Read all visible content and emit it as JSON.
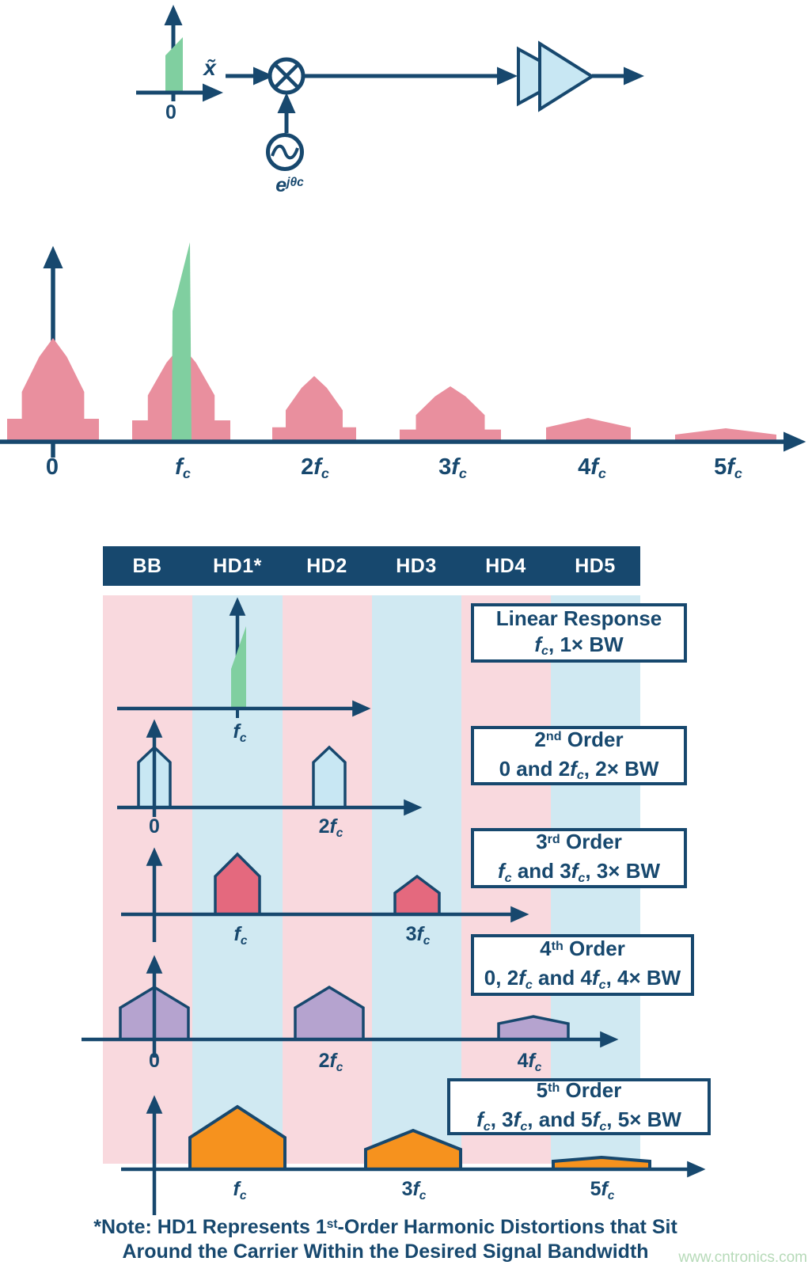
{
  "colors": {
    "navy": "#17486E",
    "pink_band": "#F9D9DE",
    "blue_band": "#D0E9F2",
    "green": "#80CFA0",
    "rose": "#E98F9E",
    "red": "#E4697E",
    "light_blue": "#C8E7F3",
    "purple": "#B5A3CF",
    "orange": "#F6921E",
    "watermark_green": "#B6DAB8"
  },
  "block_diagram": {
    "input_label": [
      {
        "t": "x̃",
        "s": "i"
      }
    ],
    "zero_label": "0",
    "oscillator_label": [
      {
        "t": "e",
        "s": "i"
      },
      {
        "t": "jθc",
        "s": "sup"
      }
    ]
  },
  "spectrum": {
    "labels": [
      [
        {
          "t": "0"
        }
      ],
      [
        {
          "t": "f",
          "s": "i"
        },
        {
          "t": "c",
          "s": "sub"
        }
      ],
      [
        {
          "t": "2"
        },
        {
          "t": "f",
          "s": "i"
        },
        {
          "t": "c",
          "s": "sub"
        }
      ],
      [
        {
          "t": "3"
        },
        {
          "t": "f",
          "s": "i"
        },
        {
          "t": "c",
          "s": "sub"
        }
      ],
      [
        {
          "t": "4"
        },
        {
          "t": "f",
          "s": "i"
        },
        {
          "t": "c",
          "s": "sub"
        }
      ],
      [
        {
          "t": "5"
        },
        {
          "t": "f",
          "s": "i"
        },
        {
          "t": "c",
          "s": "sub"
        }
      ]
    ]
  },
  "table": {
    "header": [
      "BB",
      "HD1*",
      "HD2",
      "HD3",
      "HD4",
      "HD5"
    ],
    "rows": [
      {
        "box": {
          "line1": [
            {
              "t": "Linear Response"
            }
          ],
          "line2": [
            {
              "t": "f",
              "s": "i"
            },
            {
              "t": "c",
              "s": "sub"
            },
            {
              "t": ", 1× BW"
            }
          ]
        },
        "labels": [
          [
            {
              "t": "f",
              "s": "i"
            },
            {
              "t": "c",
              "s": "sub"
            }
          ]
        ]
      },
      {
        "box": {
          "line1": [
            {
              "t": "2"
            },
            {
              "t": "nd",
              "s": "sup"
            },
            {
              "t": " Order"
            }
          ],
          "line2": [
            {
              "t": "0 and 2"
            },
            {
              "t": "f",
              "s": "i"
            },
            {
              "t": "c",
              "s": "sub"
            },
            {
              "t": ", 2× BW"
            }
          ]
        },
        "labels": [
          [
            {
              "t": "0"
            }
          ],
          [
            {
              "t": "2"
            },
            {
              "t": "f",
              "s": "i"
            },
            {
              "t": "c",
              "s": "sub"
            }
          ]
        ]
      },
      {
        "box": {
          "line1": [
            {
              "t": "3"
            },
            {
              "t": "rd",
              "s": "sup"
            },
            {
              "t": " Order"
            }
          ],
          "line2": [
            {
              "t": "f",
              "s": "i"
            },
            {
              "t": "c",
              "s": "sub"
            },
            {
              "t": " and 3"
            },
            {
              "t": "f",
              "s": "i"
            },
            {
              "t": "c",
              "s": "sub"
            },
            {
              "t": ", 3× BW"
            }
          ]
        },
        "labels": [
          [
            {
              "t": "f",
              "s": "i"
            },
            {
              "t": "c",
              "s": "sub"
            }
          ],
          [
            {
              "t": "3"
            },
            {
              "t": "f",
              "s": "i"
            },
            {
              "t": "c",
              "s": "sub"
            }
          ]
        ]
      },
      {
        "box": {
          "line1": [
            {
              "t": "4"
            },
            {
              "t": "th",
              "s": "sup"
            },
            {
              "t": " Order"
            }
          ],
          "line2": [
            {
              "t": "0, 2"
            },
            {
              "t": "f",
              "s": "i"
            },
            {
              "t": "c",
              "s": "sub"
            },
            {
              "t": " and 4"
            },
            {
              "t": "f",
              "s": "i"
            },
            {
              "t": "c",
              "s": "sub"
            },
            {
              "t": ", 4× BW"
            }
          ]
        },
        "labels": [
          [
            {
              "t": "0"
            }
          ],
          [
            {
              "t": "2"
            },
            {
              "t": "f",
              "s": "i"
            },
            {
              "t": "c",
              "s": "sub"
            }
          ],
          [
            {
              "t": "4"
            },
            {
              "t": "f",
              "s": "i"
            },
            {
              "t": "c",
              "s": "sub"
            }
          ]
        ]
      },
      {
        "box": {
          "line1": [
            {
              "t": "5"
            },
            {
              "t": "th",
              "s": "sup"
            },
            {
              "t": " Order"
            }
          ],
          "line2": [
            {
              "t": "f",
              "s": "i"
            },
            {
              "t": "c",
              "s": "sub"
            },
            {
              "t": ", 3"
            },
            {
              "t": "f",
              "s": "i"
            },
            {
              "t": "c",
              "s": "sub"
            },
            {
              "t": ", and 5"
            },
            {
              "t": "f",
              "s": "i"
            },
            {
              "t": "c",
              "s": "sub"
            },
            {
              "t": ", 5× BW"
            }
          ]
        },
        "labels": [
          [
            {
              "t": "f",
              "s": "i"
            },
            {
              "t": "c",
              "s": "sub"
            }
          ],
          [
            {
              "t": "3"
            },
            {
              "t": "f",
              "s": "i"
            },
            {
              "t": "c",
              "s": "sub"
            }
          ],
          [
            {
              "t": "5"
            },
            {
              "t": "f",
              "s": "i"
            },
            {
              "t": "c",
              "s": "sub"
            }
          ]
        ]
      }
    ]
  },
  "note": {
    "line1": [
      {
        "t": "*Note: HD1 Represents 1"
      },
      {
        "t": "st",
        "s": "sup"
      },
      {
        "t": "-Order Harmonic Distortions that Sit"
      }
    ],
    "line2": [
      {
        "t": "Around the Carrier Within the Desired Signal Bandwidth"
      }
    ]
  },
  "watermark": "www.cntronics.com"
}
